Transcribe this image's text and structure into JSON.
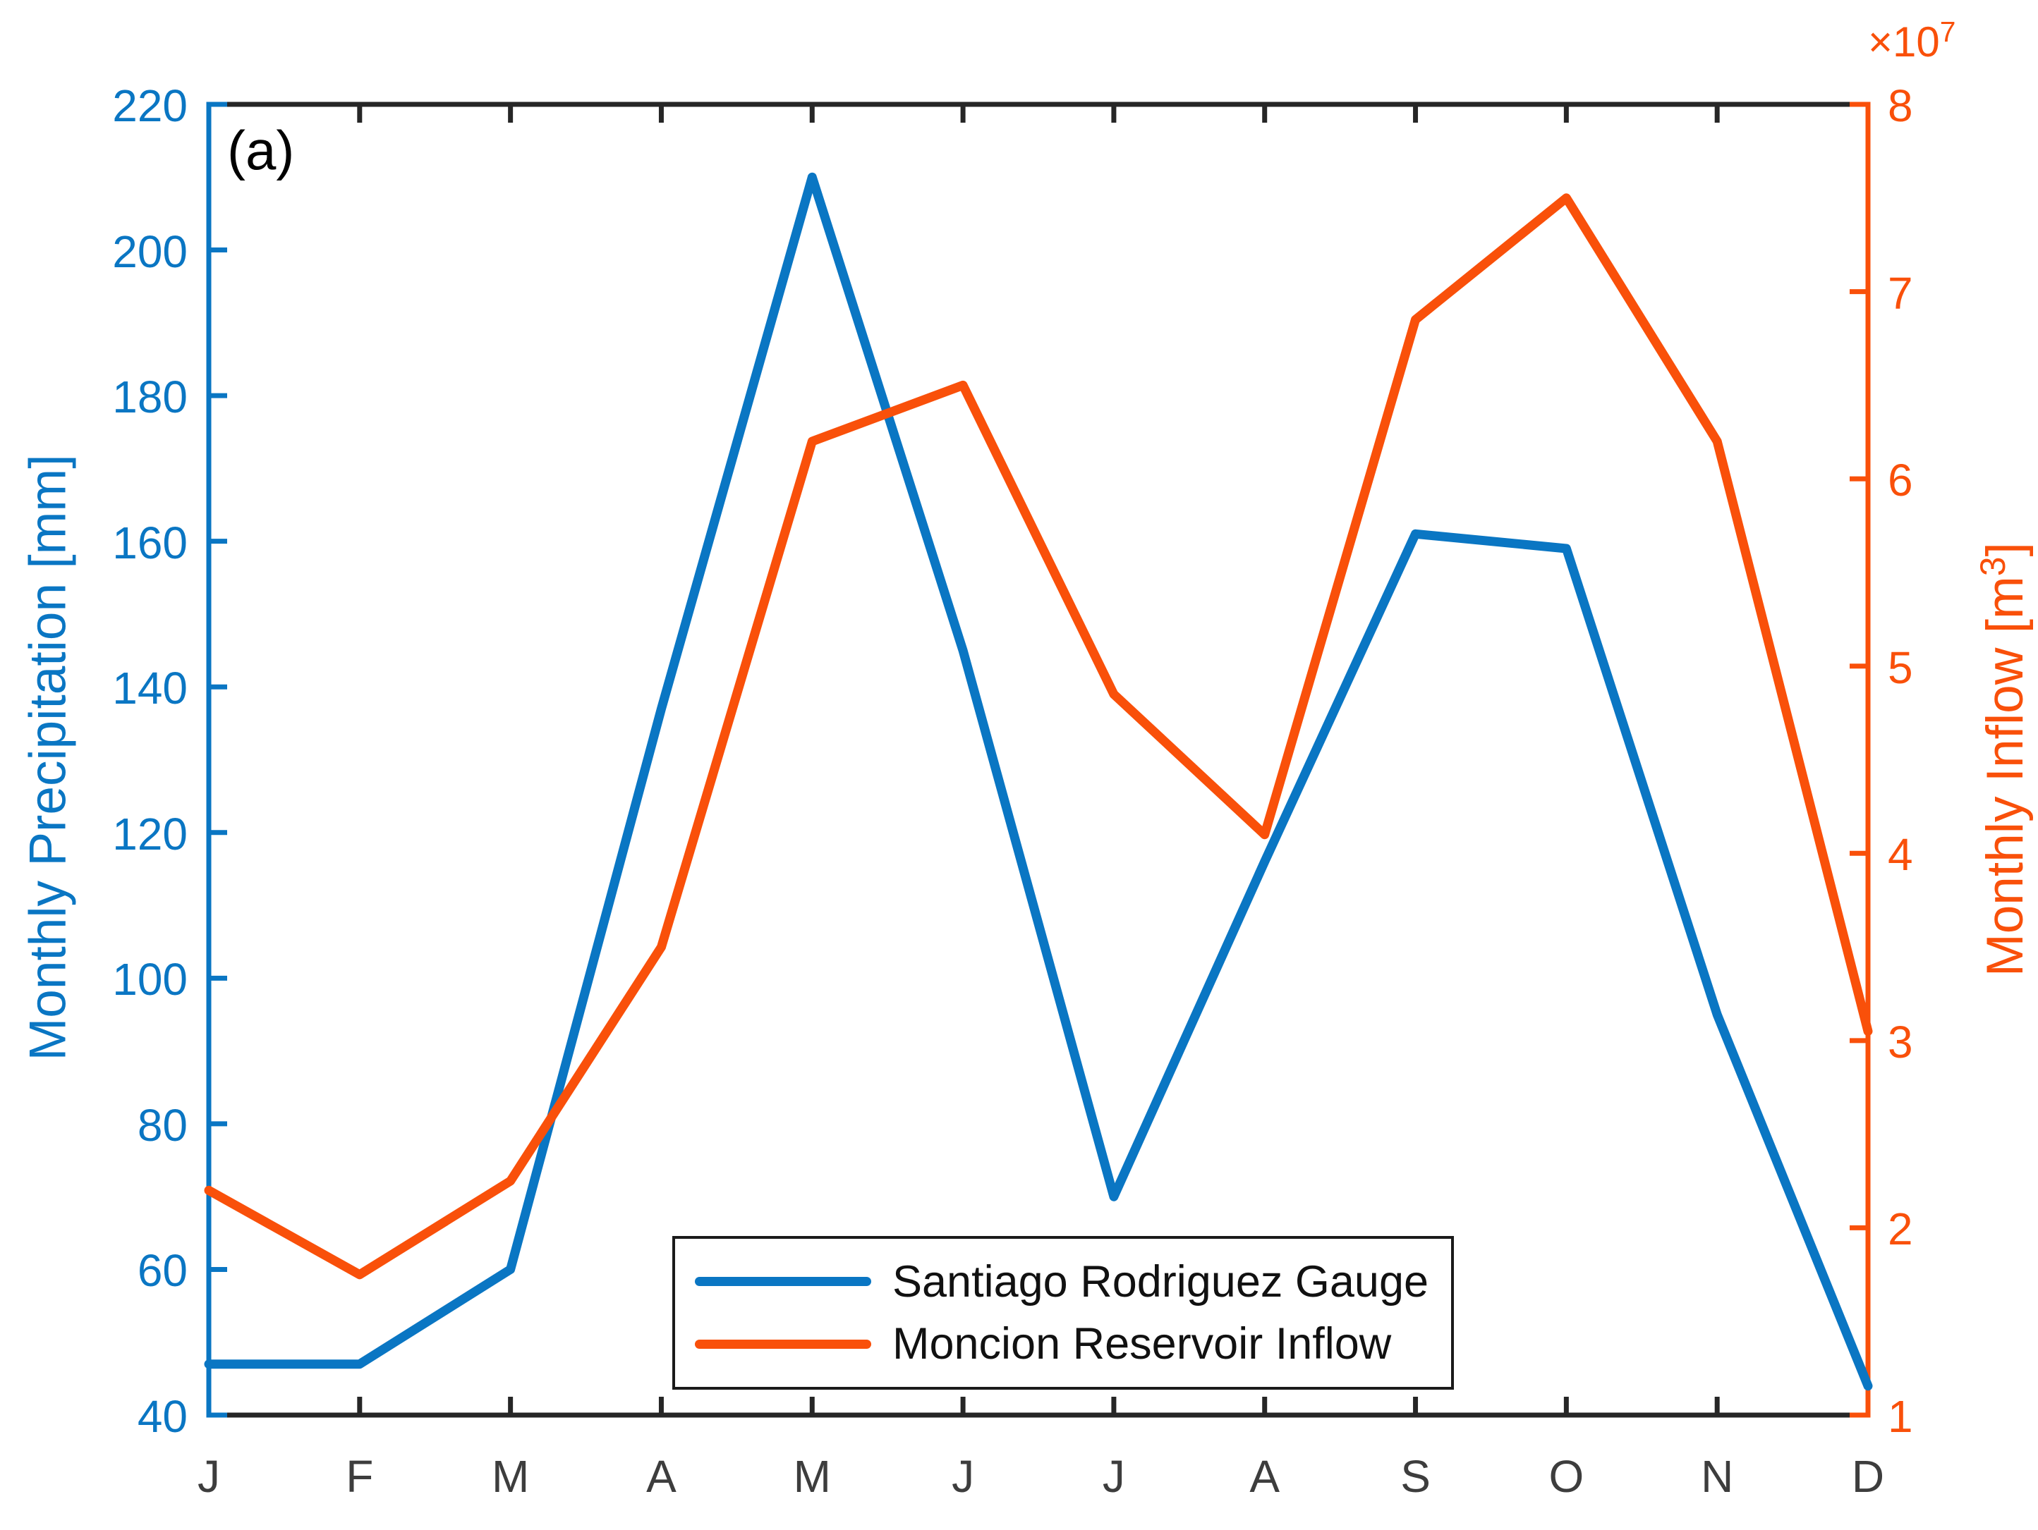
{
  "panel_label": "(a)",
  "colors": {
    "precipitation_blue": "#0A76C3",
    "inflow_orange": "#F9500A",
    "axis_black": "#262626",
    "x_tick_text": "#3d3d3d"
  },
  "left_axis": {
    "label": "Monthly Precipitation [mm]",
    "min": 40,
    "max": 220,
    "ticks": [
      40,
      60,
      80,
      100,
      120,
      140,
      160,
      180,
      200,
      220
    ]
  },
  "right_axis": {
    "label_prefix": "Monthly Inflow [m",
    "label_sup": "3",
    "label_suffix": "]",
    "exponent_prefix": "×10",
    "exponent_sup": "7",
    "min": 1,
    "max": 8,
    "ticks": [
      1,
      2,
      3,
      4,
      5,
      6,
      7,
      8
    ]
  },
  "x_axis": {
    "tick_labels": [
      "J",
      "F",
      "M",
      "A",
      "M",
      "J",
      "J",
      "A",
      "S",
      "O",
      "N",
      "D"
    ]
  },
  "legend": {
    "items": [
      {
        "label": "Santiago Rodriguez Gauge",
        "series": "precipitation"
      },
      {
        "label": "Moncion Reservoir Inflow",
        "series": "inflow"
      }
    ]
  },
  "chart_data": {
    "type": "line",
    "x_categories": [
      "J",
      "F",
      "M",
      "A",
      "M",
      "J",
      "J",
      "A",
      "S",
      "O",
      "N",
      "D"
    ],
    "series": [
      {
        "name": "Santiago Rodriguez Gauge",
        "axis": "left",
        "color": "#0A76C3",
        "values": [
          47,
          47,
          60,
          137,
          210,
          145,
          70,
          116,
          161,
          159,
          95,
          44
        ]
      },
      {
        "name": "Moncion Reservoir Inflow",
        "axis": "right",
        "color": "#F9500A",
        "values": [
          2.2,
          1.75,
          2.25,
          3.5,
          6.2,
          6.5,
          4.85,
          4.1,
          6.85,
          7.5,
          6.2,
          3.05
        ]
      }
    ],
    "left_ylabel": "Monthly Precipitation [mm]",
    "right_ylabel": "Monthly Inflow [m3] ×10^7",
    "left_ylim": [
      40,
      220
    ],
    "right_ylim": [
      10000000,
      80000000
    ],
    "grid": false,
    "legend_position": "inside-bottom-center"
  }
}
